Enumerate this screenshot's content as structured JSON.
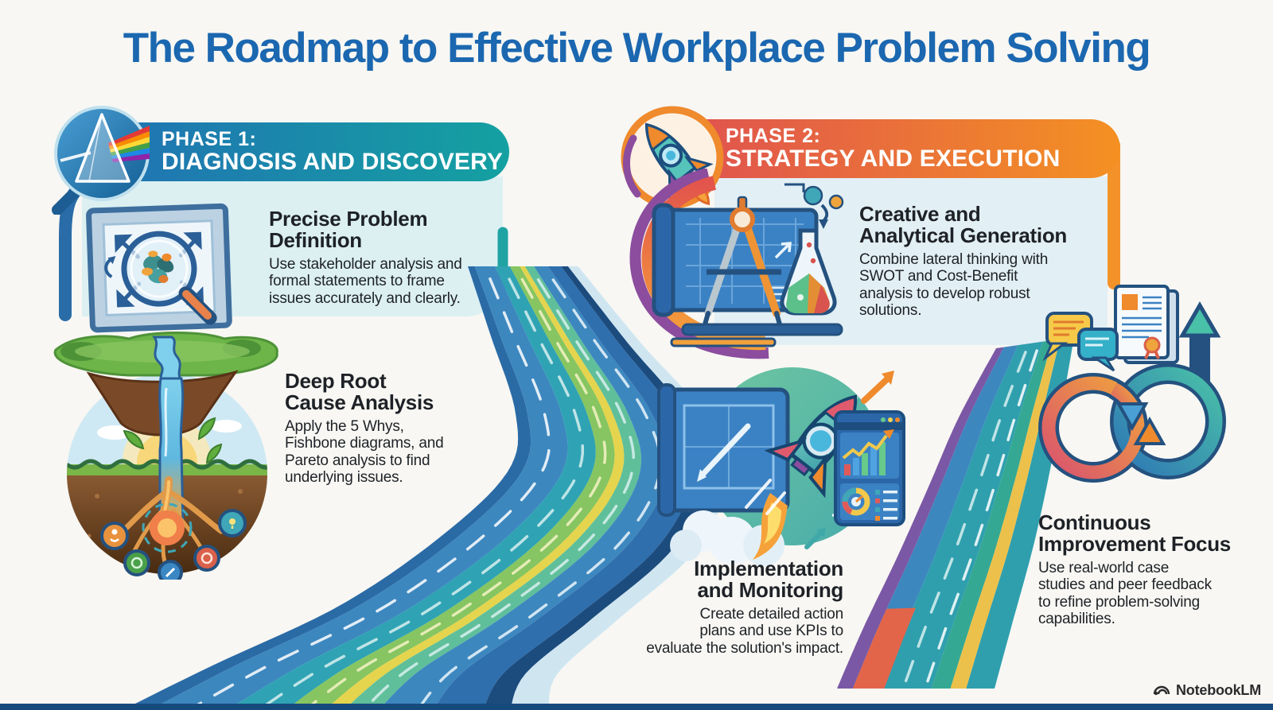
{
  "title": "The Roadmap to Effective Workplace Problem Solving",
  "watermark": "NotebookLM",
  "phase1": {
    "label": "PHASE 1:",
    "name": "DIAGNOSIS AND DISCOVERY",
    "steps": [
      {
        "heading": "Precise Problem\nDefinition",
        "body": "Use stakeholder analysis and\nformal statements to frame\nissues accurately and clearly."
      },
      {
        "heading": "Deep Root\nCause Analysis",
        "body": "Apply the 5 Whys,\nFishbone diagrams, and\nPareto analysis to find\nunderlying issues."
      }
    ]
  },
  "phase2": {
    "label": "PHASE 2:",
    "name": "STRATEGY AND EXECUTION",
    "steps": [
      {
        "heading": "Creative and\nAnalytical Generation",
        "body": "Combine lateral thinking with\nSWOT and Cost-Benefit\nanalysis to develop robust\nsolutions."
      },
      {
        "heading": "Implementation\nand Monitoring",
        "body": "Create detailed action\nplans and use KPIs to\nevaluate the solution's impact."
      },
      {
        "heading": "Continuous\nImprovement Focus",
        "body": "Use real-world case\nstudies and peer feedback\nto refine problem-solving\ncapabilities."
      }
    ]
  },
  "colors": {
    "title": "#1b67b0",
    "text": "#1e2227",
    "phase1_banner": [
      "#2170b4",
      "#14a1a1"
    ],
    "phase2_banner": [
      "#e0544e",
      "#f49122"
    ],
    "panel1": "#dcf0f2",
    "panel2": "#e2eff5",
    "bottom_strip": "#174a7c",
    "road_main_stripes": [
      {
        "t0": 0.0,
        "t1": 0.07,
        "c": "#2a6ba6"
      },
      {
        "t0": 0.07,
        "t1": 0.27,
        "c": "#3d87bf"
      },
      {
        "t0": 0.27,
        "t1": 0.42,
        "c": "#2fa3b4"
      },
      {
        "t0": 0.42,
        "t1": 0.52,
        "c": "#86c561"
      },
      {
        "t0": 0.52,
        "t1": 0.57,
        "c": "#e5d44d"
      },
      {
        "t0": 0.57,
        "t1": 0.66,
        "c": "#5fbf9a"
      },
      {
        "t0": 0.66,
        "t1": 0.8,
        "c": "#3d87bf"
      },
      {
        "t0": 0.8,
        "t1": 0.93,
        "c": "#2f6fae"
      },
      {
        "t0": 0.93,
        "t1": 1.0,
        "c": "#1c4b7d"
      },
      {
        "t0": 1.0,
        "t1": 1.1,
        "c": "#cfe6f1"
      }
    ],
    "road_main_dashes": [
      {
        "t": 0.17,
        "c": "#ffffff"
      },
      {
        "t": 0.35,
        "c": "#d8f0ef"
      },
      {
        "t": 0.47,
        "c": "#f4f2c6"
      },
      {
        "t": 0.62,
        "c": "#d8f0ef"
      },
      {
        "t": 0.76,
        "c": "#eaf6fa"
      }
    ],
    "road_right_stripes": [
      {
        "t0": 0.0,
        "t1": 0.1,
        "c": "#7b58a5"
      },
      {
        "t0": 0.1,
        "t1": 0.28,
        "c": "#3d87bf"
      },
      {
        "t0": 0.28,
        "t1": 0.6,
        "c": "#2f9fae"
      },
      {
        "t0": 0.6,
        "t1": 0.72,
        "c": "#35a893"
      },
      {
        "t0": 0.72,
        "t1": 0.82,
        "c": "#ecc14b"
      },
      {
        "t0": 0.82,
        "t1": 1.0,
        "c": "#2f9fae"
      },
      {
        "t0": 0.1,
        "t1": 0.3,
        "c": "#e2654a",
        "s0": 0.74,
        "s1": 1.0
      }
    ],
    "road_right_dashes": [
      {
        "t": 0.42,
        "c": "#d8f0ef"
      },
      {
        "t": 0.56,
        "c": "#ffffff"
      }
    ]
  }
}
